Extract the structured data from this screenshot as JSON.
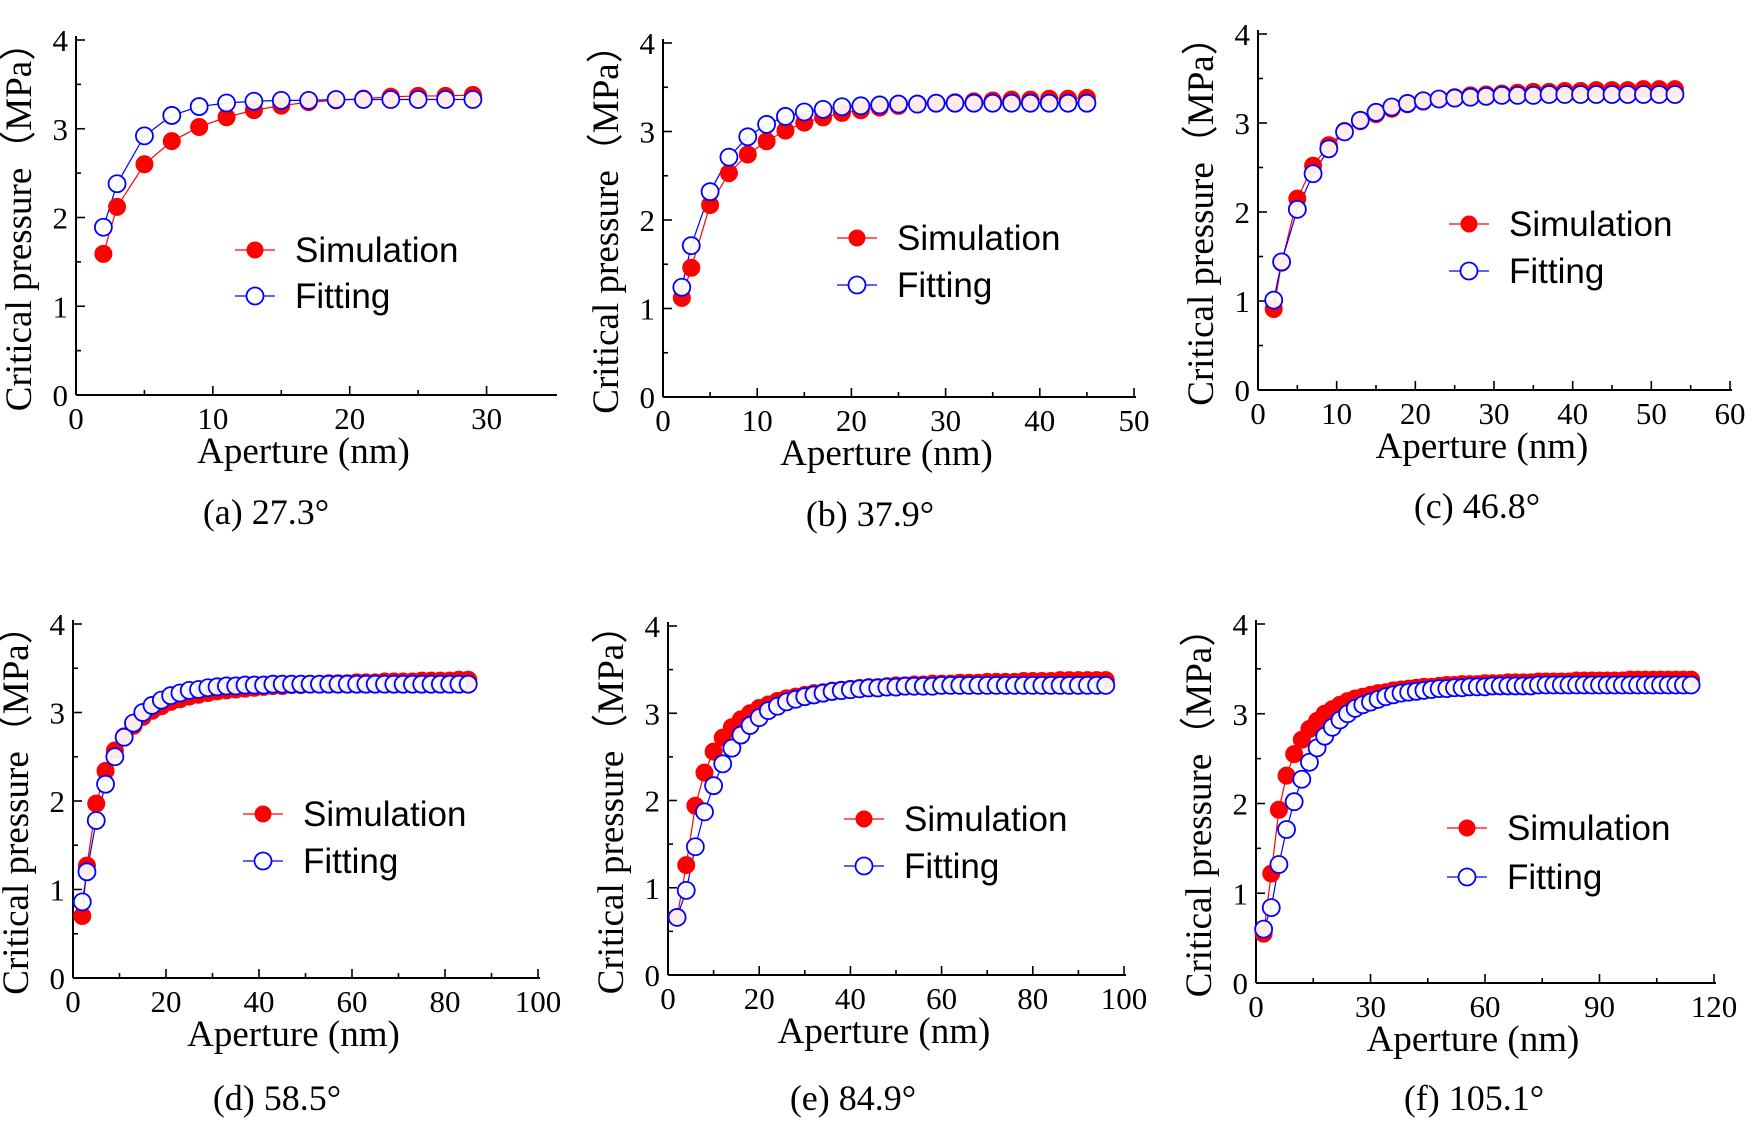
{
  "figure": {
    "legend_simulation": "Simulation",
    "legend_fitting": "Fitting",
    "simulation_color": "#ff0000",
    "fitting_color": "#0000ff"
  },
  "chart_data": [
    {
      "type": "scatter",
      "caption": "(a)  27.3°",
      "xlabel": "Aperture (nm)",
      "ylabel": "Critical pressure（MPa）",
      "xlim": [
        0,
        35
      ],
      "ylim": [
        0,
        4
      ],
      "xticks": [
        0,
        10,
        20,
        30
      ],
      "yticks": [
        0,
        1,
        2,
        3,
        4
      ],
      "series": [
        {
          "name": "Simulation",
          "x": [
            2,
            3,
            5,
            7,
            9,
            11,
            13,
            15,
            17,
            19,
            21,
            23,
            25,
            27,
            29
          ],
          "y": [
            1.59,
            2.12,
            2.6,
            2.86,
            3.02,
            3.13,
            3.21,
            3.26,
            3.3,
            3.32,
            3.34,
            3.36,
            3.37,
            3.37,
            3.38
          ]
        },
        {
          "name": "Fitting",
          "x": [
            2,
            3,
            5,
            7,
            9,
            11,
            13,
            15,
            17,
            19,
            21,
            23,
            25,
            27,
            29
          ],
          "y": [
            1.89,
            2.38,
            2.92,
            3.15,
            3.25,
            3.29,
            3.31,
            3.32,
            3.32,
            3.33,
            3.33,
            3.33,
            3.33,
            3.33,
            3.33
          ]
        }
      ]
    },
    {
      "type": "scatter",
      "caption": "(b)  37.9°",
      "xlabel": "Aperture (nm)",
      "ylabel": "Critical pressure（MPa）",
      "xlim": [
        0,
        50
      ],
      "ylim": [
        0,
        4
      ],
      "xticks": [
        0,
        10,
        20,
        30,
        40,
        50
      ],
      "yticks": [
        0,
        1,
        2,
        3,
        4
      ],
      "series": [
        {
          "name": "Simulation",
          "x": [
            2,
            3,
            5,
            7,
            9,
            11,
            13,
            15,
            17,
            19,
            21,
            23,
            25,
            27,
            29,
            31,
            33,
            35,
            37,
            39,
            41,
            43,
            45
          ],
          "y": [
            1.12,
            1.46,
            2.17,
            2.53,
            2.74,
            2.89,
            3.01,
            3.1,
            3.16,
            3.21,
            3.24,
            3.27,
            3.29,
            3.31,
            3.32,
            3.33,
            3.34,
            3.35,
            3.36,
            3.36,
            3.37,
            3.37,
            3.38
          ]
        },
        {
          "name": "Fitting",
          "x": [
            2,
            3,
            5,
            7,
            9,
            11,
            13,
            15,
            17,
            19,
            21,
            23,
            25,
            27,
            29,
            31,
            33,
            35,
            37,
            39,
            41,
            43,
            45
          ],
          "y": [
            1.24,
            1.71,
            2.32,
            2.71,
            2.94,
            3.08,
            3.17,
            3.22,
            3.25,
            3.28,
            3.29,
            3.3,
            3.31,
            3.31,
            3.32,
            3.32,
            3.32,
            3.32,
            3.32,
            3.32,
            3.32,
            3.32,
            3.32
          ]
        }
      ]
    },
    {
      "type": "scatter",
      "caption": "(c)  46.8°",
      "xlabel": "Aperture (nm)",
      "ylabel": "Critical pressure（MPa）",
      "xlim": [
        0,
        60
      ],
      "ylim": [
        0,
        4
      ],
      "xticks": [
        0,
        10,
        20,
        30,
        40,
        50,
        60
      ],
      "yticks": [
        0,
        1,
        2,
        3,
        4
      ],
      "series": [
        {
          "name": "Simulation",
          "x": [
            2,
            3,
            5,
            7,
            9,
            11,
            13,
            15,
            17,
            19,
            21,
            23,
            25,
            27,
            29,
            31,
            33,
            35,
            37,
            39,
            41,
            43,
            45,
            47,
            49,
            51,
            53
          ],
          "y": [
            0.91,
            1.43,
            2.15,
            2.52,
            2.75,
            2.91,
            3.02,
            3.1,
            3.16,
            3.21,
            3.24,
            3.27,
            3.29,
            3.31,
            3.32,
            3.33,
            3.34,
            3.35,
            3.35,
            3.36,
            3.36,
            3.37,
            3.37,
            3.37,
            3.38,
            3.38,
            3.38
          ]
        },
        {
          "name": "Fitting",
          "x": [
            2,
            3,
            5,
            7,
            9,
            11,
            13,
            15,
            17,
            19,
            21,
            23,
            25,
            27,
            29,
            31,
            33,
            35,
            37,
            39,
            41,
            43,
            45,
            47,
            49,
            51,
            53
          ],
          "y": [
            1.01,
            1.44,
            2.03,
            2.43,
            2.71,
            2.9,
            3.03,
            3.12,
            3.18,
            3.22,
            3.25,
            3.27,
            3.28,
            3.29,
            3.3,
            3.31,
            3.31,
            3.31,
            3.32,
            3.32,
            3.32,
            3.32,
            3.32,
            3.32,
            3.32,
            3.32,
            3.32
          ]
        }
      ]
    },
    {
      "type": "scatter",
      "caption": "(d)  58.5°",
      "xlabel": "Aperture (nm)",
      "ylabel": "Critical pressure（MPa）",
      "xlim": [
        0,
        100
      ],
      "ylim": [
        0,
        4
      ],
      "xticks": [
        0,
        20,
        40,
        60,
        80,
        100
      ],
      "yticks": [
        0,
        1,
        2,
        3,
        4
      ],
      "series": [
        {
          "name": "Simulation",
          "x": [
            2,
            3,
            5,
            7,
            9,
            11,
            13,
            15,
            17,
            19,
            21,
            23,
            25,
            27,
            29,
            31,
            33,
            35,
            37,
            39,
            41,
            43,
            45,
            47,
            49,
            51,
            53,
            55,
            57,
            59,
            61,
            63,
            65,
            67,
            69,
            71,
            73,
            75,
            77,
            79,
            81,
            83,
            85
          ],
          "y": [
            0.7,
            1.27,
            1.97,
            2.34,
            2.57,
            2.73,
            2.85,
            2.95,
            3.02,
            3.07,
            3.12,
            3.15,
            3.18,
            3.2,
            3.22,
            3.24,
            3.25,
            3.26,
            3.27,
            3.28,
            3.29,
            3.3,
            3.3,
            3.31,
            3.31,
            3.32,
            3.32,
            3.33,
            3.33,
            3.33,
            3.34,
            3.34,
            3.34,
            3.35,
            3.35,
            3.35,
            3.35,
            3.36,
            3.36,
            3.36,
            3.36,
            3.37,
            3.37
          ]
        },
        {
          "name": "Fitting",
          "x": [
            2,
            3,
            5,
            7,
            9,
            11,
            13,
            15,
            17,
            19,
            21,
            23,
            25,
            27,
            29,
            31,
            33,
            35,
            37,
            39,
            41,
            43,
            45,
            47,
            49,
            51,
            53,
            55,
            57,
            59,
            61,
            63,
            65,
            67,
            69,
            71,
            73,
            75,
            77,
            79,
            81,
            83,
            85
          ],
          "y": [
            0.86,
            1.2,
            1.78,
            2.19,
            2.5,
            2.72,
            2.88,
            3.0,
            3.08,
            3.14,
            3.19,
            3.22,
            3.25,
            3.26,
            3.28,
            3.29,
            3.3,
            3.3,
            3.31,
            3.31,
            3.31,
            3.32,
            3.32,
            3.32,
            3.32,
            3.32,
            3.32,
            3.32,
            3.32,
            3.32,
            3.32,
            3.32,
            3.32,
            3.32,
            3.32,
            3.32,
            3.32,
            3.32,
            3.32,
            3.32,
            3.32,
            3.32,
            3.32
          ]
        }
      ]
    },
    {
      "type": "scatter",
      "caption": "(e)  84.9°",
      "xlabel": "Aperture (nm)",
      "ylabel": "Critical pressure（MPa）",
      "xlim": [
        0,
        100
      ],
      "ylim": [
        0,
        4
      ],
      "xticks": [
        0,
        20,
        40,
        60,
        80,
        100
      ],
      "yticks": [
        0,
        1,
        2,
        3,
        4
      ],
      "series": [
        {
          "name": "Simulation",
          "x": [
            2,
            4,
            6,
            8,
            10,
            12,
            14,
            16,
            18,
            20,
            22,
            24,
            26,
            28,
            30,
            32,
            34,
            36,
            38,
            40,
            42,
            44,
            46,
            48,
            50,
            52,
            54,
            56,
            58,
            60,
            62,
            64,
            66,
            68,
            70,
            72,
            74,
            76,
            78,
            80,
            82,
            84,
            86,
            88,
            90,
            92,
            94,
            96
          ],
          "y": [
            0.66,
            1.26,
            1.94,
            2.32,
            2.56,
            2.72,
            2.84,
            2.93,
            3.0,
            3.06,
            3.1,
            3.14,
            3.17,
            3.19,
            3.21,
            3.23,
            3.24,
            3.26,
            3.27,
            3.28,
            3.29,
            3.3,
            3.3,
            3.31,
            3.32,
            3.32,
            3.33,
            3.33,
            3.34,
            3.34,
            3.34,
            3.35,
            3.35,
            3.35,
            3.36,
            3.36,
            3.36,
            3.36,
            3.37,
            3.37,
            3.37,
            3.37,
            3.38,
            3.38,
            3.38,
            3.38,
            3.38,
            3.38
          ]
        },
        {
          "name": "Fitting",
          "x": [
            2,
            4,
            6,
            8,
            10,
            12,
            14,
            16,
            18,
            20,
            22,
            24,
            26,
            28,
            30,
            32,
            34,
            36,
            38,
            40,
            42,
            44,
            46,
            48,
            50,
            52,
            54,
            56,
            58,
            60,
            62,
            64,
            66,
            68,
            70,
            72,
            74,
            76,
            78,
            80,
            82,
            84,
            86,
            88,
            90,
            92,
            94,
            96
          ],
          "y": [
            0.66,
            0.97,
            1.47,
            1.87,
            2.17,
            2.42,
            2.6,
            2.75,
            2.86,
            2.95,
            3.03,
            3.08,
            3.13,
            3.16,
            3.19,
            3.21,
            3.23,
            3.25,
            3.26,
            3.27,
            3.28,
            3.29,
            3.29,
            3.3,
            3.3,
            3.31,
            3.31,
            3.31,
            3.31,
            3.32,
            3.32,
            3.32,
            3.32,
            3.32,
            3.32,
            3.32,
            3.32,
            3.32,
            3.32,
            3.32,
            3.32,
            3.32,
            3.32,
            3.32,
            3.32,
            3.32,
            3.32,
            3.32
          ]
        }
      ]
    },
    {
      "type": "scatter",
      "caption": "(f)  105.1°",
      "xlabel": "Aperture (nm)",
      "ylabel": "Critical pressure（MPa）",
      "xlim": [
        0,
        120
      ],
      "ylim": [
        0,
        4
      ],
      "xticks": [
        0,
        30,
        60,
        90,
        120
      ],
      "yticks": [
        0,
        1,
        2,
        3,
        4
      ],
      "series": [
        {
          "name": "Simulation",
          "x": [
            2,
            4,
            6,
            8,
            10,
            12,
            14,
            16,
            18,
            20,
            22,
            24,
            26,
            28,
            30,
            32,
            34,
            36,
            38,
            40,
            42,
            44,
            46,
            48,
            50,
            52,
            54,
            56,
            58,
            60,
            62,
            64,
            66,
            68,
            70,
            72,
            74,
            76,
            78,
            80,
            82,
            84,
            86,
            88,
            90,
            92,
            94,
            96,
            98,
            100,
            102,
            104,
            106,
            108,
            110,
            112,
            114
          ],
          "y": [
            0.55,
            1.22,
            1.93,
            2.31,
            2.55,
            2.71,
            2.83,
            2.92,
            3.0,
            3.05,
            3.1,
            3.14,
            3.17,
            3.19,
            3.21,
            3.23,
            3.24,
            3.26,
            3.27,
            3.28,
            3.29,
            3.3,
            3.3,
            3.31,
            3.32,
            3.32,
            3.33,
            3.33,
            3.33,
            3.34,
            3.34,
            3.34,
            3.35,
            3.35,
            3.35,
            3.35,
            3.36,
            3.36,
            3.36,
            3.36,
            3.36,
            3.37,
            3.37,
            3.37,
            3.37,
            3.37,
            3.37,
            3.37,
            3.38,
            3.38,
            3.38,
            3.38,
            3.38,
            3.38,
            3.38,
            3.38,
            3.38
          ]
        },
        {
          "name": "Fitting",
          "x": [
            2,
            4,
            6,
            8,
            10,
            12,
            14,
            16,
            18,
            20,
            22,
            24,
            26,
            28,
            30,
            32,
            34,
            36,
            38,
            40,
            42,
            44,
            46,
            48,
            50,
            52,
            54,
            56,
            58,
            60,
            62,
            64,
            66,
            68,
            70,
            72,
            74,
            76,
            78,
            80,
            82,
            84,
            86,
            88,
            90,
            92,
            94,
            96,
            98,
            100,
            102,
            104,
            106,
            108,
            110,
            112,
            114
          ],
          "y": [
            0.6,
            0.84,
            1.32,
            1.71,
            2.02,
            2.27,
            2.46,
            2.62,
            2.75,
            2.85,
            2.93,
            3.0,
            3.06,
            3.1,
            3.13,
            3.16,
            3.19,
            3.21,
            3.23,
            3.24,
            3.25,
            3.26,
            3.27,
            3.28,
            3.28,
            3.29,
            3.29,
            3.3,
            3.3,
            3.3,
            3.31,
            3.31,
            3.31,
            3.31,
            3.31,
            3.31,
            3.32,
            3.32,
            3.32,
            3.32,
            3.32,
            3.32,
            3.32,
            3.32,
            3.32,
            3.32,
            3.32,
            3.32,
            3.32,
            3.32,
            3.32,
            3.32,
            3.32,
            3.32,
            3.32,
            3.32,
            3.32
          ]
        }
      ]
    }
  ]
}
